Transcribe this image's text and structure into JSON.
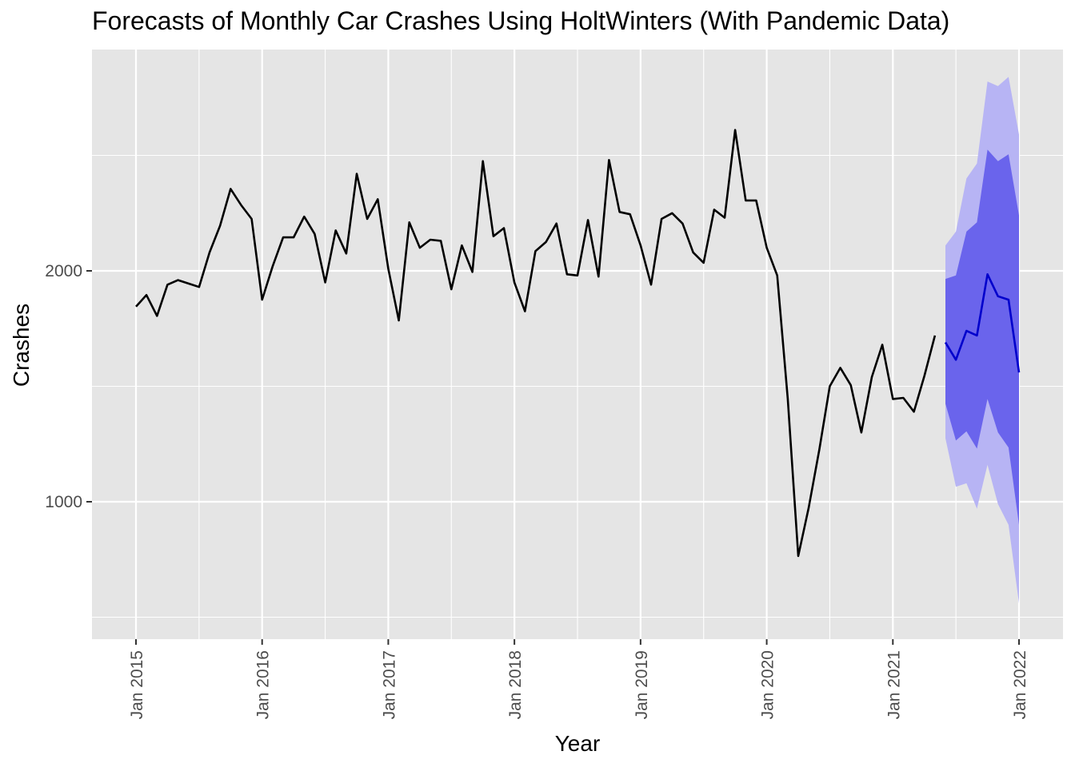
{
  "chart_data": {
    "type": "line",
    "title": "Forecasts of Monthly Car Crashes Using HoltWinters (With Pandemic Data)",
    "xlabel": "Year",
    "ylabel": "Crashes",
    "x_ticks": [
      "Jan 2015",
      "Jan 2016",
      "Jan 2017",
      "Jan 2018",
      "Jan 2019",
      "Jan 2020",
      "Jan 2021",
      "Jan 2022"
    ],
    "y_ticks": [
      1000,
      2000
    ],
    "ylim": [
      590,
      2840
    ],
    "grid": true,
    "colors": {
      "panel": "#e5e5e5",
      "grid": "#ffffff",
      "history_line": "#000000",
      "forecast_line": "#0000cc",
      "band80": "#6a64ec",
      "band95": "#b7b4f4"
    },
    "history": {
      "start": "2015-01",
      "values": [
        1845,
        1895,
        1805,
        1940,
        1960,
        1945,
        1930,
        2080,
        2195,
        2355,
        2285,
        2225,
        1875,
        2020,
        2145,
        2145,
        2235,
        2160,
        1950,
        2175,
        2075,
        2420,
        2225,
        2310,
        2010,
        1785,
        2210,
        2100,
        2135,
        2130,
        1920,
        2110,
        1995,
        2475,
        2150,
        2185,
        1950,
        1825,
        2085,
        2125,
        2205,
        1985,
        1980,
        2220,
        1975,
        2480,
        2255,
        2245,
        2110,
        1940,
        2225,
        2250,
        2205,
        2080,
        2035,
        2265,
        2230,
        2610,
        2305,
        2305,
        2100,
        1980,
        1445,
        765,
        975,
        1225,
        1500,
        1580,
        1505,
        1300,
        1540,
        1680,
        1445,
        1450,
        1390,
        1545,
        1720
      ]
    },
    "forecast": {
      "start": "2021-06",
      "mean": [
        1690,
        1615,
        1740,
        1720,
        1985,
        1890,
        1875,
        1560
      ],
      "lo80": [
        1425,
        1265,
        1305,
        1230,
        1445,
        1300,
        1235,
        900
      ],
      "hi80": [
        1965,
        1980,
        2170,
        2210,
        2525,
        2475,
        2505,
        2240
      ],
      "lo95": [
        1275,
        1065,
        1080,
        970,
        1160,
        990,
        900,
        560
      ],
      "hi95": [
        2110,
        2170,
        2400,
        2465,
        2820,
        2800,
        2840,
        2590
      ]
    }
  }
}
